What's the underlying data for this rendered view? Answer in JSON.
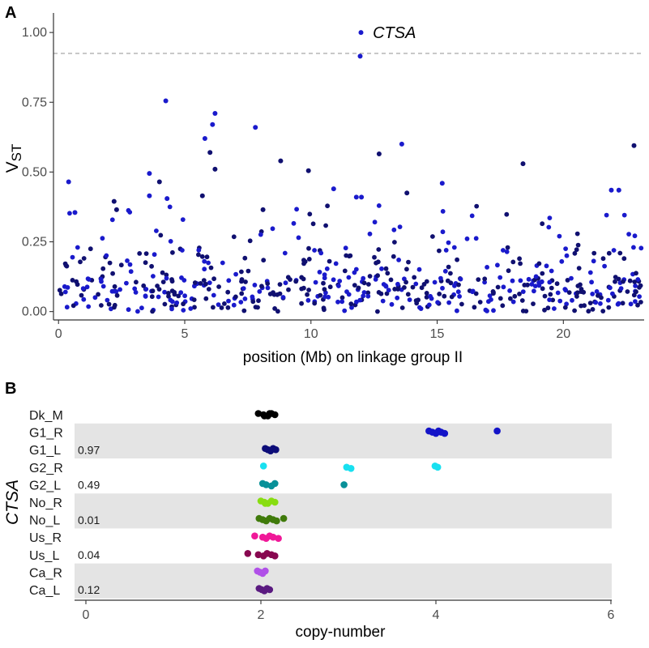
{
  "chart_data": [
    {
      "type": "scatter",
      "panel": "A",
      "xlabel": "position (Mb) on linkage group II",
      "ylabel_main": "V",
      "ylabel_sub": "ST",
      "xlim": [
        -0.2,
        23.2
      ],
      "ylim": [
        -0.03,
        1.07
      ],
      "xticks": [
        0,
        5,
        10,
        15,
        20
      ],
      "xtick_labels": [
        "0",
        "5",
        "10",
        "15",
        "20"
      ],
      "yticks": [
        0,
        0.25,
        0.5,
        0.75,
        1.0
      ],
      "ytick_labels": [
        "0.00",
        "0.25",
        "0.50",
        "0.75",
        "1.00"
      ],
      "threshold": 0.925,
      "threshold_style": "dashed",
      "colors": {
        "dark": "#101070",
        "bright": "#1a1acc",
        "threshold": "#9e9e9e"
      },
      "annotation": {
        "text": "CTSA",
        "x": 12.0,
        "y": 1.0
      },
      "highlight_points": [
        {
          "x": 11.98,
          "y": 1.0,
          "color": "bright"
        },
        {
          "x": 11.95,
          "y": 0.915,
          "color": "bright"
        },
        {
          "x": 4.25,
          "y": 0.755,
          "color": "bright"
        },
        {
          "x": 6.2,
          "y": 0.71,
          "color": "bright"
        },
        {
          "x": 6.1,
          "y": 0.67,
          "color": "bright"
        },
        {
          "x": 7.8,
          "y": 0.66,
          "color": "bright"
        },
        {
          "x": 5.8,
          "y": 0.62,
          "color": "bright"
        },
        {
          "x": 13.6,
          "y": 0.6,
          "color": "bright"
        },
        {
          "x": 22.8,
          "y": 0.595,
          "color": "dark"
        },
        {
          "x": 6.0,
          "y": 0.57,
          "color": "dark"
        },
        {
          "x": 12.7,
          "y": 0.565,
          "color": "dark"
        },
        {
          "x": 8.8,
          "y": 0.54,
          "color": "dark"
        },
        {
          "x": 18.4,
          "y": 0.53,
          "color": "dark"
        },
        {
          "x": 6.2,
          "y": 0.51,
          "color": "dark"
        },
        {
          "x": 9.9,
          "y": 0.505,
          "color": "dark"
        },
        {
          "x": 3.6,
          "y": 0.495,
          "color": "bright"
        },
        {
          "x": 0.4,
          "y": 0.465,
          "color": "bright"
        },
        {
          "x": 15.2,
          "y": 0.46,
          "color": "bright"
        },
        {
          "x": 4.0,
          "y": 0.465,
          "color": "dark"
        },
        {
          "x": 10.9,
          "y": 0.44,
          "color": "bright"
        },
        {
          "x": 21.9,
          "y": 0.435,
          "color": "bright"
        },
        {
          "x": 22.2,
          "y": 0.435,
          "color": "bright"
        },
        {
          "x": 13.8,
          "y": 0.425,
          "color": "dark"
        },
        {
          "x": 11.8,
          "y": 0.41,
          "color": "bright"
        },
        {
          "x": 12.0,
          "y": 0.41,
          "color": "bright"
        },
        {
          "x": 3.6,
          "y": 0.415,
          "color": "bright"
        },
        {
          "x": 5.7,
          "y": 0.415,
          "color": "dark"
        },
        {
          "x": 4.3,
          "y": 0.405,
          "color": "bright"
        },
        {
          "x": 2.2,
          "y": 0.395,
          "color": "dark"
        },
        {
          "x": 0.65,
          "y": 0.355,
          "color": "bright"
        },
        {
          "x": 2.3,
          "y": 0.365,
          "color": "dark"
        },
        {
          "x": 8.1,
          "y": 0.365,
          "color": "dark"
        }
      ],
      "background": {
        "count": 560,
        "x_range": [
          0,
          23.1
        ],
        "note": "dense cloud of SNP points between 0.00 and ~0.40"
      }
    },
    {
      "type": "strip",
      "panel": "B",
      "ylabel": "CTSA",
      "xlabel": "copy-number",
      "xlim": [
        -0.05,
        6.05
      ],
      "xticks": [
        0,
        2,
        4,
        6
      ],
      "xtick_labels": [
        "0",
        "2",
        "4",
        "6"
      ],
      "band_color": "#e4e4e4",
      "rows": [
        {
          "label": "Dk_M",
          "color": "#000000",
          "values": [
            1.97,
            2.03,
            2.08,
            2.12,
            2.16,
            2.04,
            2.1
          ]
        },
        {
          "label": "G1_R",
          "color": "#1414c8",
          "values": [
            3.92,
            3.96,
            4.0,
            4.03,
            4.06,
            4.1,
            4.7
          ]
        },
        {
          "label": "G1_L",
          "color": "#0d0d78",
          "values": [
            2.05,
            2.08,
            2.11,
            2.14,
            2.17
          ]
        },
        {
          "label": "G2_R",
          "color": "#18e0f0",
          "values": [
            2.03,
            2.98,
            3.03,
            3.99,
            4.02
          ]
        },
        {
          "label": "G2_L",
          "color": "#089098",
          "values": [
            2.02,
            2.06,
            2.12,
            2.16,
            2.95
          ]
        },
        {
          "label": "No_R",
          "color": "#88dd11",
          "values": [
            2.0,
            2.04,
            2.08,
            2.12,
            2.16,
            2.05
          ]
        },
        {
          "label": "No_L",
          "color": "#3f7a0a",
          "values": [
            1.98,
            2.02,
            2.06,
            2.1,
            2.14,
            2.18,
            2.26
          ]
        },
        {
          "label": "Us_R",
          "color": "#f01898",
          "values": [
            1.93,
            2.02,
            2.06,
            2.1,
            2.14,
            2.2
          ]
        },
        {
          "label": "Us_L",
          "color": "#880850",
          "values": [
            1.85,
            1.97,
            2.03,
            2.07,
            2.12,
            2.16
          ]
        },
        {
          "label": "Ca_R",
          "color": "#b050e8",
          "values": [
            1.96,
            1.99,
            2.02,
            2.05
          ]
        },
        {
          "label": "Ca_L",
          "color": "#5a1a80",
          "values": [
            1.98,
            2.01,
            2.04,
            2.07,
            2.1
          ]
        }
      ],
      "groups": [
        {
          "rows": [
            0
          ],
          "band": false,
          "stat": ""
        },
        {
          "rows": [
            1,
            2
          ],
          "band": true,
          "stat": "0.97"
        },
        {
          "rows": [
            3,
            4
          ],
          "band": false,
          "stat": "0.49"
        },
        {
          "rows": [
            5,
            6
          ],
          "band": true,
          "stat": "0.01"
        },
        {
          "rows": [
            7,
            8
          ],
          "band": false,
          "stat": "0.04"
        },
        {
          "rows": [
            9,
            10
          ],
          "band": true,
          "stat": "0.12"
        }
      ]
    }
  ]
}
